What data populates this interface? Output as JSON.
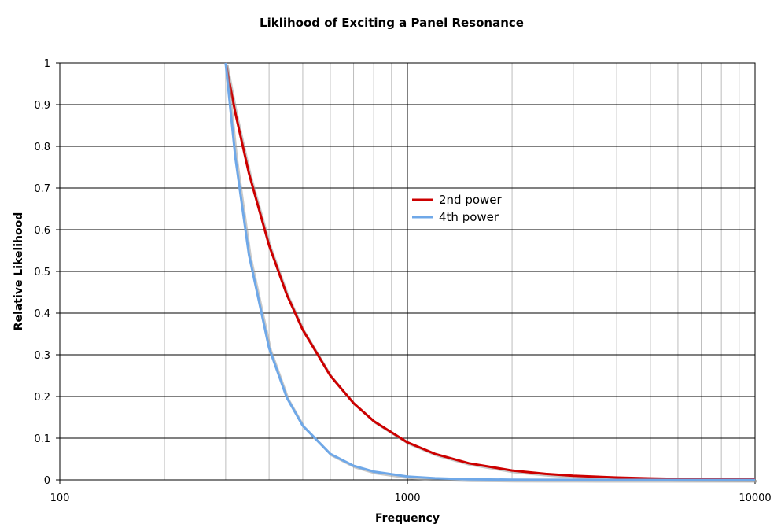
{
  "chart_data": {
    "type": "line",
    "title": "Liklihood of Exciting a Panel Resonance",
    "xlabel": "Frequency",
    "ylabel": "Relative Likelihood",
    "x_scale": "log",
    "xlim": [
      100,
      10000
    ],
    "ylim": [
      0,
      1
    ],
    "x_ticks": [
      100,
      1000,
      10000
    ],
    "x_tick_labels": [
      "100",
      "1000",
      "10000"
    ],
    "y_ticks": [
      0,
      0.1,
      0.2,
      0.3,
      0.4,
      0.5,
      0.6,
      0.7,
      0.8,
      0.9,
      1
    ],
    "y_tick_labels": [
      "0",
      "0.1",
      "0.2",
      "0.3",
      "0.4",
      "0.5",
      "0.6",
      "0.7",
      "0.8",
      "0.9",
      "1"
    ],
    "grid": true,
    "legend_position": "center",
    "series": [
      {
        "name": "2nd power",
        "color": "#cc0000",
        "x": [
          300,
          320,
          350,
          400,
          450,
          500,
          600,
          700,
          800,
          1000,
          1200,
          1500,
          2000,
          2500,
          3000,
          4000,
          5000,
          6000,
          8000,
          10000
        ],
        "y": [
          1.0,
          0.879,
          0.735,
          0.5625,
          0.444,
          0.36,
          0.25,
          0.184,
          0.141,
          0.09,
          0.0625,
          0.04,
          0.0225,
          0.0144,
          0.01,
          0.0056,
          0.0036,
          0.0025,
          0.0014,
          0.0009
        ]
      },
      {
        "name": "4th power",
        "color": "#6fa8e8",
        "x": [
          300,
          320,
          350,
          400,
          450,
          500,
          600,
          700,
          800,
          1000,
          1200,
          1500,
          2000,
          2500,
          3000,
          4000,
          5000,
          6000,
          8000,
          10000
        ],
        "y": [
          1.0,
          0.772,
          0.54,
          0.316,
          0.197,
          0.13,
          0.0625,
          0.0337,
          0.0198,
          0.0081,
          0.0039,
          0.0016,
          0.0005,
          0.0002,
          0.0001,
          0.0,
          0.0,
          0.0,
          0.0,
          0.0
        ]
      }
    ]
  }
}
